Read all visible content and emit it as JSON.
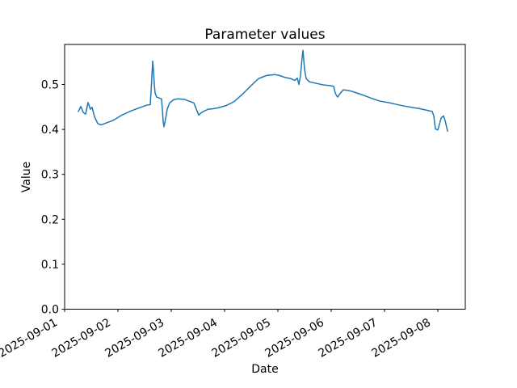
{
  "figure": {
    "background": "#ffffff",
    "spine_color": "#000000",
    "text_color": "#000000"
  },
  "chart_data": {
    "type": "line",
    "title": "Parameter values",
    "xlabel": "Date",
    "ylabel": "Value",
    "grid": false,
    "legend": null,
    "x_unit": "days since 2025-09-01",
    "x_tick_labels": [
      "2025-09-01",
      "2025-09-02",
      "2025-09-03",
      "2025-09-04",
      "2025-09-05",
      "2025-09-06",
      "2025-09-07",
      "2025-09-08"
    ],
    "x_tick_days": [
      0,
      1,
      2,
      3,
      4,
      5,
      6,
      7
    ],
    "y_tick_labels": [
      "0.0",
      "0.1",
      "0.2",
      "0.3",
      "0.4",
      "0.5"
    ],
    "y_ticks": [
      0.0,
      0.1,
      0.2,
      0.3,
      0.4,
      0.5
    ],
    "xlim_days": [
      0,
      7.515
    ],
    "ylim": [
      0,
      0.589
    ],
    "series": [
      {
        "name": "Parameter values",
        "color": "#1f77b4",
        "x_days": [
          0.258,
          0.303,
          0.348,
          0.394,
          0.439,
          0.485,
          0.515,
          0.561,
          0.621,
          0.682,
          0.773,
          0.909,
          1.061,
          1.242,
          1.424,
          1.545,
          1.606,
          1.629,
          1.652,
          1.667,
          1.682,
          1.697,
          1.727,
          1.773,
          1.818,
          1.833,
          1.848,
          1.864,
          1.894,
          1.924,
          1.97,
          2.045,
          2.121,
          2.242,
          2.333,
          2.424,
          2.47,
          2.515,
          2.561,
          2.621,
          2.697,
          2.788,
          2.879,
          3.03,
          3.182,
          3.333,
          3.485,
          3.636,
          3.788,
          3.939,
          4.03,
          4.121,
          4.242,
          4.318,
          4.364,
          4.394,
          4.424,
          4.455,
          4.47,
          4.485,
          4.5,
          4.53,
          4.591,
          4.697,
          4.848,
          5.0,
          5.045,
          5.076,
          5.106,
          5.121,
          5.167,
          5.227,
          5.303,
          5.379,
          5.455,
          5.606,
          5.758,
          5.909,
          6.061,
          6.212,
          6.364,
          6.515,
          6.667,
          6.818,
          6.894,
          6.924,
          6.955,
          7.0,
          7.061,
          7.106,
          7.136,
          7.182
        ],
        "values": [
          0.44,
          0.451,
          0.438,
          0.434,
          0.46,
          0.445,
          0.449,
          0.428,
          0.413,
          0.41,
          0.414,
          0.42,
          0.431,
          0.441,
          0.449,
          0.454,
          0.455,
          0.5,
          0.552,
          0.53,
          0.5,
          0.481,
          0.472,
          0.47,
          0.468,
          0.445,
          0.418,
          0.406,
          0.424,
          0.445,
          0.459,
          0.466,
          0.468,
          0.467,
          0.463,
          0.459,
          0.445,
          0.432,
          0.437,
          0.441,
          0.445,
          0.446,
          0.448,
          0.453,
          0.462,
          0.478,
          0.496,
          0.513,
          0.52,
          0.522,
          0.52,
          0.516,
          0.513,
          0.509,
          0.514,
          0.5,
          0.52,
          0.56,
          0.576,
          0.555,
          0.534,
          0.513,
          0.506,
          0.503,
          0.499,
          0.497,
          0.496,
          0.481,
          0.474,
          0.472,
          0.48,
          0.488,
          0.487,
          0.485,
          0.482,
          0.476,
          0.469,
          0.463,
          0.46,
          0.456,
          0.452,
          0.449,
          0.446,
          0.442,
          0.44,
          0.43,
          0.401,
          0.399,
          0.425,
          0.43,
          0.42,
          0.396
        ]
      }
    ]
  }
}
